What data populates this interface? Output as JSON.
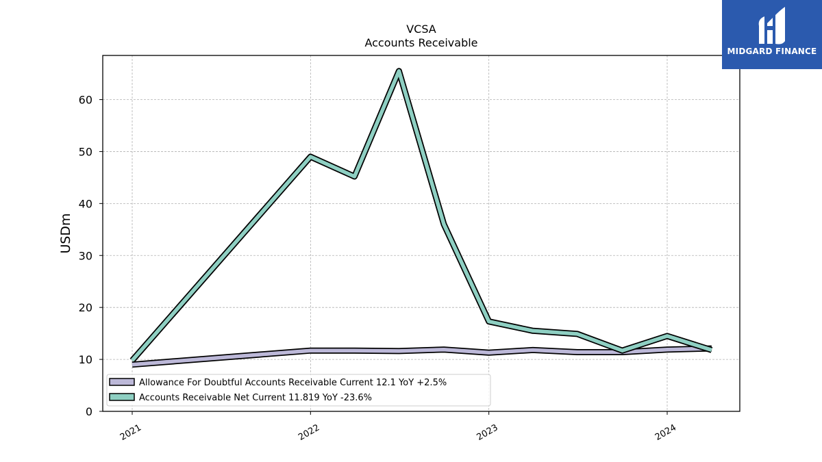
{
  "brand": {
    "name": "MIDGARD FINANCE",
    "color": "#2b5aae"
  },
  "chart_data": {
    "type": "line",
    "title": "VCSA",
    "subtitle": "Accounts Receivable",
    "xlabel": "",
    "ylabel": "USDm",
    "ylim": [
      0,
      68.5
    ],
    "yticks": [
      0,
      10,
      20,
      30,
      40,
      50,
      60
    ],
    "xticks": [
      "2021",
      "2022",
      "2023",
      "2024"
    ],
    "grid": true,
    "legend_position": "lower-left",
    "x": [
      "2021-01-01",
      "2022-01-01",
      "2022-04-01",
      "2022-07-01",
      "2022-10-01",
      "2023-01-01",
      "2023-04-01",
      "2023-07-01",
      "2023-10-01",
      "2024-01-01",
      "2024-04-01"
    ],
    "series": [
      {
        "name": "Allowance For Doubtful Accounts Receivable Current",
        "legend_label": "Allowance For Doubtful Accounts Receivable Current  12.1 YoY +2.5%",
        "color": "#bcb8d8",
        "values": [
          9.0,
          11.7,
          11.7,
          11.6,
          11.9,
          11.3,
          11.8,
          11.4,
          11.4,
          11.9,
          12.1
        ]
      },
      {
        "name": "Accounts Receivable Net Current",
        "legend_label": "Accounts Receivable Net Current  11.819 YoY -23.6%",
        "color": "#8ecfc2",
        "values": [
          9.8,
          49.0,
          45.2,
          65.5,
          36.0,
          17.3,
          15.5,
          14.9,
          11.7,
          14.5,
          11.8
        ]
      }
    ]
  }
}
